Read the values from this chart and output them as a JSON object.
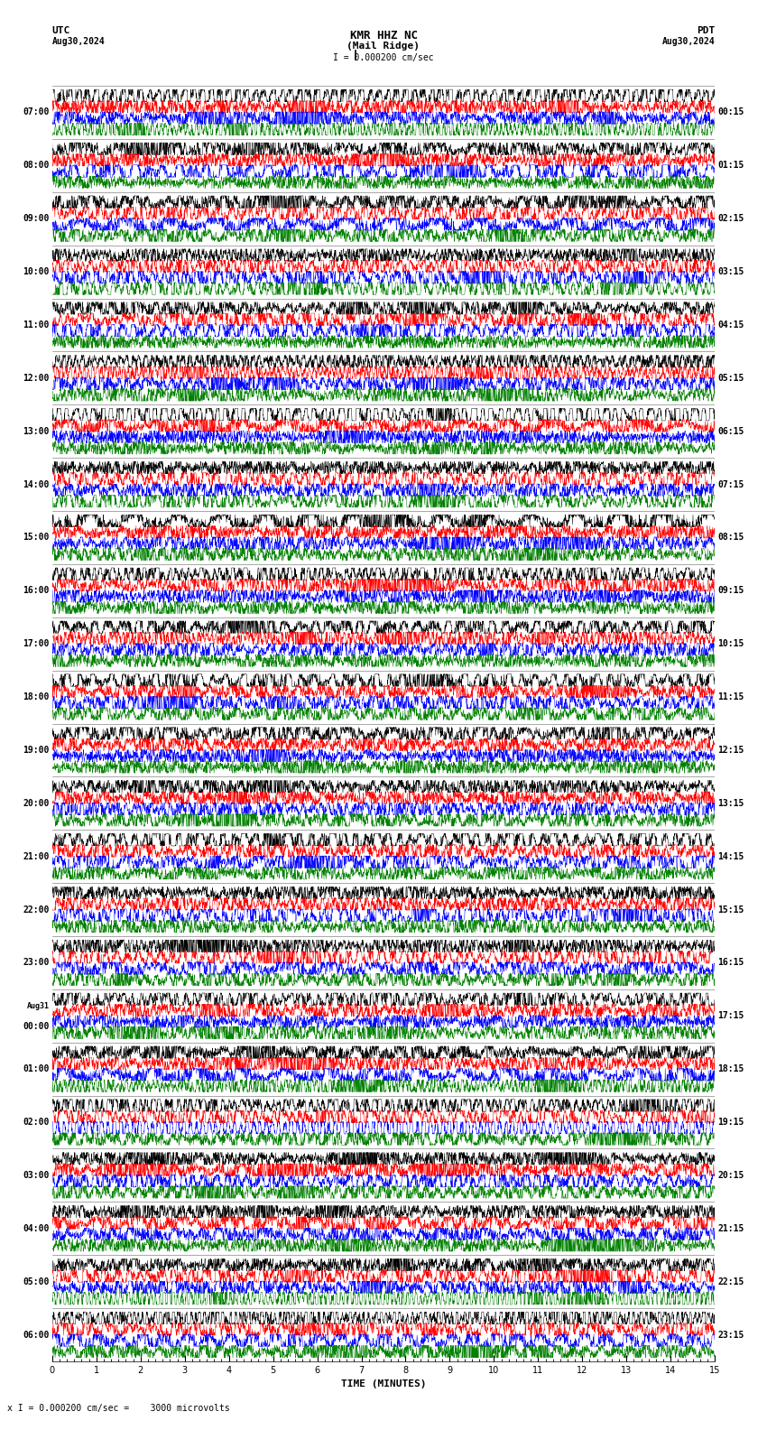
{
  "title_line1": "KMR HHZ NC",
  "title_line2": "(Mail Ridge)",
  "scale_text": "I = 0.000200 cm/sec",
  "utc_label": "UTC",
  "pdt_label": "PDT",
  "date_left": "Aug30,2024",
  "date_right": "Aug30,2024",
  "bottom_label": "TIME (MINUTES)",
  "bottom_scale": "x I = 0.000200 cm/sec =    3000 microvolts",
  "xlabel_ticks": [
    0,
    1,
    2,
    3,
    4,
    5,
    6,
    7,
    8,
    9,
    10,
    11,
    12,
    13,
    14,
    15
  ],
  "bg_color": "#ffffff",
  "trace_colors": [
    "#000000",
    "#ff0000",
    "#0000ff",
    "#008000"
  ],
  "left_times_utc": [
    "07:00",
    "08:00",
    "09:00",
    "10:00",
    "11:00",
    "12:00",
    "13:00",
    "14:00",
    "15:00",
    "16:00",
    "17:00",
    "18:00",
    "19:00",
    "20:00",
    "21:00",
    "22:00",
    "23:00",
    "Aug31\n00:00",
    "01:00",
    "02:00",
    "03:00",
    "04:00",
    "05:00",
    "06:00"
  ],
  "right_times_pdt": [
    "00:15",
    "01:15",
    "02:15",
    "03:15",
    "04:15",
    "05:15",
    "06:15",
    "07:15",
    "08:15",
    "09:15",
    "10:15",
    "11:15",
    "12:15",
    "13:15",
    "14:15",
    "15:15",
    "16:15",
    "17:15",
    "18:15",
    "19:15",
    "20:15",
    "21:15",
    "22:15",
    "23:15"
  ],
  "n_rows": 24,
  "n_traces_per_row": 4,
  "samples_per_row": 2700,
  "fig_width": 8.5,
  "fig_height": 15.84,
  "trace_lw": 0.35,
  "font_size_title": 9,
  "font_size_label": 7,
  "font_size_time": 7
}
